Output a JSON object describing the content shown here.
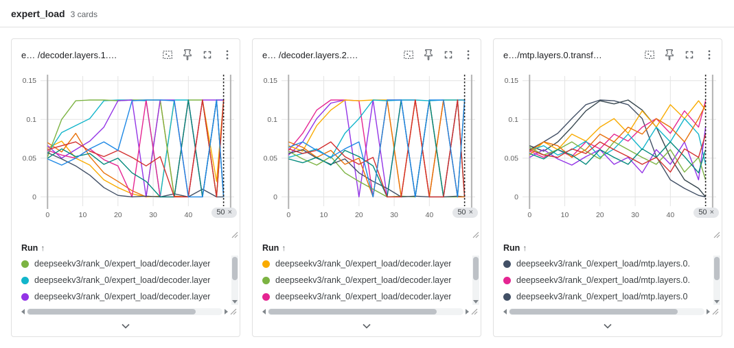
{
  "header": {
    "title": "expert_load",
    "subtitle": "3 cards"
  },
  "run_table": {
    "header": "Run",
    "sort_icon": "↑"
  },
  "colors": {
    "grid": "#e3e3e3",
    "axis_boundary": "#b3b3b3",
    "step_cursor": "#212121",
    "tick_text": "#616161"
  },
  "cards": [
    {
      "title": "e… /decoder.layers.1.…",
      "step_chip": {
        "value": "50",
        "close": "×"
      },
      "runs": [
        {
          "color": "#7cb342",
          "label": "deepseekv3/rank_0/expert_load/decoder.layer"
        },
        {
          "color": "#12b5cb",
          "label": "deepseekv3/rank_0/expert_load/decoder.layer"
        },
        {
          "color": "#9334e6",
          "label": "deepseekv3/rank_0/expert_load/decoder.layer"
        }
      ],
      "chart_data": {
        "type": "line",
        "xlim": [
          -2,
          53
        ],
        "ylim": [
          -0.012,
          0.163
        ],
        "xticks": [
          0,
          10,
          20,
          30,
          40
        ],
        "yticks": [
          0,
          0.05,
          0.1,
          0.15
        ],
        "ytick_labels": [
          "0",
          "0.05",
          "0.1",
          "0.15"
        ],
        "selected_step": 50,
        "boundary_steps": [
          0,
          52
        ],
        "grid_color": "#e3e3e3",
        "axis_color": "#b3b3b3",
        "cursor_color": "#212121",
        "x": [
          0,
          4,
          8,
          12,
          16,
          20,
          24,
          28,
          32,
          36,
          40,
          44,
          48,
          50
        ],
        "series": [
          {
            "color": "#f9ab00",
            "values": [
              0.063,
              0.072,
              0.05,
              0.041,
              0.022,
              0.012,
              0.004,
              0,
              0.001,
              0.124,
              0,
              0.125,
              0.02,
              0.125
            ]
          },
          {
            "color": "#e8710a",
            "values": [
              0.07,
              0.058,
              0.082,
              0.052,
              0.031,
              0.02,
              0.008,
              0,
              0.125,
              0.001,
              0,
              0.125,
              0,
              0.125
            ]
          },
          {
            "color": "#12b5cb",
            "values": [
              0.056,
              0.083,
              0.092,
              0.101,
              0.124,
              0.125,
              0.125,
              0.124,
              0,
              0.125,
              0.125,
              0,
              0.125,
              0.125
            ]
          },
          {
            "color": "#7cb342",
            "values": [
              0.052,
              0.1,
              0.124,
              0.125,
              0.125,
              0.124,
              0.125,
              0.125,
              0.125,
              0,
              0.125,
              0.125,
              0,
              0.125
            ]
          },
          {
            "color": "#9334e6",
            "values": [
              0.066,
              0.05,
              0.061,
              0.072,
              0.09,
              0.124,
              0.125,
              0,
              0.125,
              0.125,
              0,
              0.125,
              0.125,
              0.125
            ]
          },
          {
            "color": "#e52592",
            "values": [
              0.06,
              0.054,
              0.05,
              0.062,
              0.048,
              0.04,
              0,
              0.125,
              0,
              0,
              0.125,
              0,
              0.125,
              0
            ]
          },
          {
            "color": "#425066",
            "values": [
              0.057,
              0.049,
              0.04,
              0.028,
              0.012,
              0.002,
              0,
              0.001,
              0,
              0.004,
              0,
              0.01,
              0,
              0
            ]
          },
          {
            "color": "#00897b",
            "values": [
              0.05,
              0.062,
              0.052,
              0.056,
              0.042,
              0.05,
              0.031,
              0.02,
              0,
              0,
              0.125,
              0,
              0.125,
              0
            ]
          },
          {
            "color": "#d32f2f",
            "values": [
              0.061,
              0.066,
              0.071,
              0.059,
              0.052,
              0.06,
              0.051,
              0.04,
              0.052,
              0,
              0,
              0.125,
              0,
              0.125
            ]
          },
          {
            "color": "#1e88e5",
            "values": [
              0.049,
              0.041,
              0.05,
              0.062,
              0.071,
              0.06,
              0.124,
              0.125,
              0.125,
              0.124,
              0,
              0,
              0.125,
              0
            ]
          }
        ]
      }
    },
    {
      "title": "e… /decoder.layers.2.…",
      "step_chip": {
        "value": "50",
        "close": "×"
      },
      "runs": [
        {
          "color": "#f9ab00",
          "label": "deepseekv3/rank_0/expert_load/decoder.layer"
        },
        {
          "color": "#7cb342",
          "label": "deepseekv3/rank_0/expert_load/decoder.layer"
        },
        {
          "color": "#e52592",
          "label": "deepseekv3/rank_0/expert_load/decoder.layer"
        }
      ],
      "chart_data": {
        "type": "line",
        "xlim": [
          -2,
          53
        ],
        "ylim": [
          -0.012,
          0.163
        ],
        "xticks": [
          0,
          10,
          20,
          30,
          40
        ],
        "yticks": [
          0,
          0.05,
          0.1,
          0.15
        ],
        "ytick_labels": [
          "0",
          "0.05",
          "0.1",
          "0.15"
        ],
        "selected_step": 50,
        "boundary_steps": [
          0,
          52
        ],
        "grid_color": "#e3e3e3",
        "axis_color": "#b3b3b3",
        "cursor_color": "#212121",
        "x": [
          0,
          4,
          8,
          12,
          16,
          20,
          24,
          28,
          32,
          36,
          40,
          44,
          48,
          50
        ],
        "series": [
          {
            "color": "#e52592",
            "values": [
              0.06,
              0.082,
              0.112,
              0.125,
              0.125,
              0.124,
              0,
              0.125,
              0.125,
              0,
              0.125,
              0,
              0.125,
              0.125
            ]
          },
          {
            "color": "#9334e6",
            "values": [
              0.054,
              0.071,
              0.101,
              0.121,
              0.125,
              0,
              0.125,
              0,
              0.125,
              0.125,
              0,
              0.125,
              0,
              0.125
            ]
          },
          {
            "color": "#f9ab00",
            "values": [
              0.066,
              0.059,
              0.092,
              0.112,
              0.125,
              0.124,
              0.125,
              0.125,
              0,
              0.125,
              0,
              0.125,
              0.125,
              0
            ]
          },
          {
            "color": "#12b5cb",
            "values": [
              0.051,
              0.056,
              0.062,
              0.05,
              0.082,
              0.101,
              0.125,
              0.124,
              0.125,
              0.125,
              0.124,
              0.125,
              0.125,
              0.125
            ]
          },
          {
            "color": "#7cb342",
            "values": [
              0.059,
              0.049,
              0.041,
              0.052,
              0.031,
              0.02,
              0.01,
              0,
              0.001,
              0,
              0.125,
              0,
              0,
              0.125
            ]
          },
          {
            "color": "#425066",
            "values": [
              0.056,
              0.061,
              0.05,
              0.042,
              0.049,
              0.031,
              0.02,
              0.011,
              0,
              0.001,
              0,
              0,
              0.001,
              0
            ]
          },
          {
            "color": "#e8710a",
            "values": [
              0.071,
              0.064,
              0.051,
              0.06,
              0.042,
              0.05,
              0,
              0.125,
              0,
              0.125,
              0,
              0.125,
              0,
              0
            ]
          },
          {
            "color": "#00897b",
            "values": [
              0.049,
              0.044,
              0.051,
              0.041,
              0.06,
              0.052,
              0.04,
              0,
              0.125,
              0,
              0.125,
              0,
              0.125,
              0
            ]
          },
          {
            "color": "#d32f2f",
            "values": [
              0.062,
              0.056,
              0.06,
              0.071,
              0.052,
              0.042,
              0.051,
              0,
              0,
              0.125,
              0,
              0,
              0.125,
              0
            ]
          },
          {
            "color": "#1e88e5",
            "values": [
              0.064,
              0.071,
              0.06,
              0.051,
              0.062,
              0.071,
              0,
              0.125,
              0.125,
              0,
              0.125,
              0.125,
              0,
              0.125
            ]
          }
        ]
      }
    },
    {
      "title": "e…/mtp.layers.0.transf…",
      "step_chip": {
        "value": "50",
        "close": "×"
      },
      "runs": [
        {
          "color": "#425066",
          "label": "deepseekv3/rank_0/expert_load/mtp.layers.0."
        },
        {
          "color": "#e52592",
          "label": "deepseekv3/rank_0/expert_load/mtp.layers.0."
        },
        {
          "color": "#425066",
          "label": "deepseekv3/rank_0/expert_load/mtp.layers.0"
        }
      ],
      "chart_data": {
        "type": "line",
        "xlim": [
          -2,
          53
        ],
        "ylim": [
          -0.012,
          0.163
        ],
        "xticks": [
          0,
          10,
          20,
          30,
          40
        ],
        "yticks": [
          0,
          0.05,
          0.1,
          0.15
        ],
        "ytick_labels": [
          "0",
          "0.05",
          "0.1",
          "0.15"
        ],
        "selected_step": 50,
        "boundary_steps": [
          0,
          52
        ],
        "grid_color": "#e3e3e3",
        "axis_color": "#b3b3b3",
        "cursor_color": "#212121",
        "x": [
          0,
          4,
          8,
          12,
          16,
          20,
          24,
          28,
          32,
          36,
          40,
          44,
          48,
          50
        ],
        "series": [
          {
            "color": "#425066",
            "values": [
              0.061,
              0.071,
              0.082,
              0.101,
              0.119,
              0.125,
              0.124,
              0.119,
              0.101,
              0.052,
              0.022,
              0.011,
              0.002,
              0
            ]
          },
          {
            "color": "#37474f",
            "values": [
              0.066,
              0.059,
              0.071,
              0.09,
              0.111,
              0.124,
              0.12,
              0.125,
              0.112,
              0.09,
              0.051,
              0.022,
              0.011,
              0
            ]
          },
          {
            "color": "#e52592",
            "values": [
              0.059,
              0.051,
              0.061,
              0.052,
              0.071,
              0.062,
              0.081,
              0.072,
              0.09,
              0.101,
              0.082,
              0.111,
              0.09,
              0.124
            ]
          },
          {
            "color": "#f9ab00",
            "values": [
              0.054,
              0.071,
              0.061,
              0.081,
              0.072,
              0.09,
              0.101,
              0.082,
              0.111,
              0.09,
              0.119,
              0.101,
              0.124,
              0.112
            ]
          },
          {
            "color": "#12b5cb",
            "values": [
              0.06,
              0.066,
              0.054,
              0.061,
              0.072,
              0.051,
              0.062,
              0.081,
              0.061,
              0.09,
              0.071,
              0.101,
              0.081,
              0.042
            ]
          },
          {
            "color": "#9334e6",
            "values": [
              0.051,
              0.061,
              0.049,
              0.041,
              0.052,
              0.061,
              0.042,
              0.051,
              0.031,
              0.061,
              0.042,
              0.071,
              0.022,
              0.09
            ]
          },
          {
            "color": "#7cb342",
            "values": [
              0.064,
              0.054,
              0.061,
              0.071,
              0.059,
              0.049,
              0.071,
              0.061,
              0.051,
              0.042,
              0.061,
              0.032,
              0.051,
              0.022
            ]
          },
          {
            "color": "#e8710a",
            "values": [
              0.059,
              0.071,
              0.066,
              0.051,
              0.061,
              0.081,
              0.071,
              0.09,
              0.081,
              0.101,
              0.09,
              0.071,
              0.101,
              0.119
            ]
          },
          {
            "color": "#00897b",
            "values": [
              0.056,
              0.049,
              0.061,
              0.054,
              0.042,
              0.061,
              0.051,
              0.042,
              0.062,
              0.051,
              0.071,
              0.052,
              0.031,
              0.061
            ]
          },
          {
            "color": "#d32f2f",
            "values": [
              0.061,
              0.054,
              0.051,
              0.062,
              0.056,
              0.071,
              0.061,
              0.052,
              0.042,
              0.051,
              0.032,
              0.062,
              0.051,
              0.081
            ]
          }
        ]
      }
    }
  ]
}
